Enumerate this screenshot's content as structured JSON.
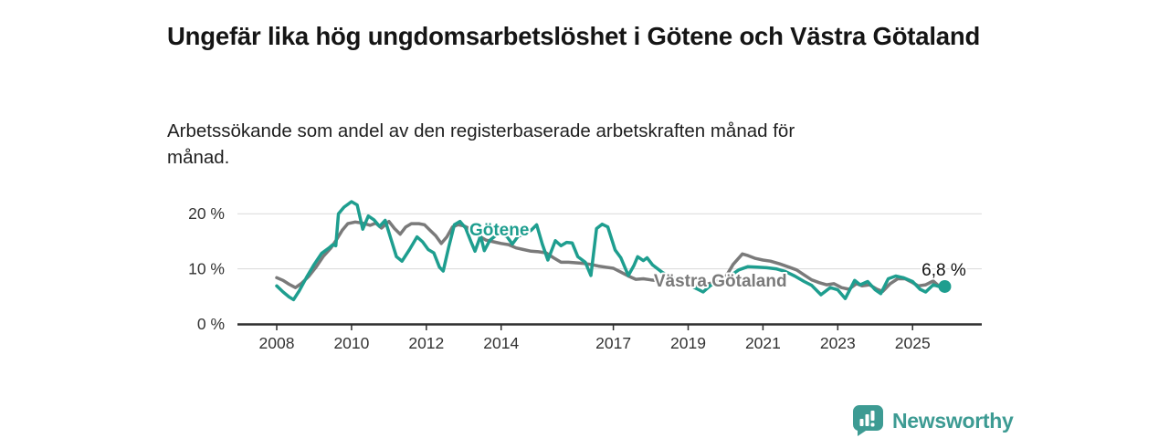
{
  "page": {
    "title": "Ungefär lika hög ungdomsarbetslöshet i Götene och Västra Götaland",
    "subtitle": "Arbetssökande som andel av den registerbaserade arbetskraften månad för månad."
  },
  "branding": {
    "name": "Newsworthy",
    "icon": "newsworthy-speech-bubble-barchart-icon",
    "color": "#3D9B93"
  },
  "colors": {
    "gotene_line": "#1E9E8F",
    "vastra_line": "#7a7a7a",
    "axis": "#2e2e2e",
    "grid": "#d9d9d9",
    "tick_text": "#333333",
    "annotation_text": "#111111",
    "background": "#ffffff"
  },
  "chart_data": {
    "type": "line",
    "title": "Ungefär lika hög ungdomsarbetslöshet i Götene och Västra Götaland",
    "subtitle": "Arbetssökande som andel av den registerbaserade arbetskraften månad för månad.",
    "xlabel": "",
    "ylabel": "",
    "unit": "%",
    "xlim": [
      2006.95,
      2026.85
    ],
    "ylim": [
      0,
      26.5
    ],
    "grid": "horizontal",
    "legend_position": "inline-labels",
    "x_ticks": [
      2008,
      2010,
      2012,
      2014,
      2017,
      2019,
      2021,
      2023,
      2025
    ],
    "y_ticks": [
      0,
      10,
      20
    ],
    "y_tick_labels": [
      "0 %",
      "10 %",
      "20 %"
    ],
    "annotation": {
      "series": "Götene",
      "text": "6,8 %",
      "value": 6.8
    },
    "series": [
      {
        "name": "Västra Götaland",
        "color": "#7a7a7a",
        "label": {
          "text": "Västra Götaland",
          "x": 2019.86,
          "y": 6.8
        },
        "points": [
          [
            2008.0,
            8.4
          ],
          [
            2008.17,
            7.9
          ],
          [
            2008.33,
            7.2
          ],
          [
            2008.5,
            6.6
          ],
          [
            2008.67,
            7.4
          ],
          [
            2008.85,
            8.6
          ],
          [
            2009.05,
            10.3
          ],
          [
            2009.25,
            12.3
          ],
          [
            2009.45,
            13.8
          ],
          [
            2009.6,
            15.3
          ],
          [
            2009.75,
            17.0
          ],
          [
            2009.9,
            18.2
          ],
          [
            2010.1,
            18.5
          ],
          [
            2010.3,
            18.3
          ],
          [
            2010.5,
            17.9
          ],
          [
            2010.65,
            18.3
          ],
          [
            2010.8,
            17.4
          ],
          [
            2011.0,
            18.6
          ],
          [
            2011.15,
            17.3
          ],
          [
            2011.3,
            16.3
          ],
          [
            2011.45,
            17.6
          ],
          [
            2011.6,
            18.2
          ],
          [
            2011.8,
            18.2
          ],
          [
            2011.95,
            18.0
          ],
          [
            2012.1,
            17.0
          ],
          [
            2012.25,
            16.0
          ],
          [
            2012.4,
            14.6
          ],
          [
            2012.55,
            15.8
          ],
          [
            2012.7,
            17.6
          ],
          [
            2012.85,
            18.0
          ],
          [
            2013.0,
            17.8
          ],
          [
            2013.15,
            17.3
          ],
          [
            2013.3,
            16.4
          ],
          [
            2013.45,
            15.8
          ],
          [
            2013.6,
            15.2
          ],
          [
            2013.8,
            14.9
          ],
          [
            2014.0,
            14.6
          ],
          [
            2014.2,
            14.4
          ],
          [
            2014.4,
            13.8
          ],
          [
            2014.6,
            13.5
          ],
          [
            2014.8,
            13.2
          ],
          [
            2015.0,
            13.1
          ],
          [
            2015.2,
            12.9
          ],
          [
            2015.4,
            12.0
          ],
          [
            2015.6,
            11.2
          ],
          [
            2015.8,
            11.2
          ],
          [
            2016.0,
            11.1
          ],
          [
            2016.2,
            11.0
          ],
          [
            2016.4,
            10.8
          ],
          [
            2016.6,
            10.5
          ],
          [
            2016.8,
            10.3
          ],
          [
            2017.0,
            10.1
          ],
          [
            2017.2,
            9.4
          ],
          [
            2017.4,
            8.7
          ],
          [
            2017.6,
            8.1
          ],
          [
            2017.8,
            8.2
          ],
          [
            2018.0,
            8.0
          ],
          [
            2018.25,
            7.8
          ],
          [
            2018.5,
            7.6
          ],
          [
            2018.75,
            7.4
          ],
          [
            2019.0,
            7.2
          ],
          [
            2019.25,
            7.0
          ],
          [
            2019.5,
            7.2
          ],
          [
            2019.75,
            7.7
          ],
          [
            2020.0,
            8.5
          ],
          [
            2020.2,
            10.8
          ],
          [
            2020.45,
            12.7
          ],
          [
            2020.6,
            12.4
          ],
          [
            2020.8,
            11.9
          ],
          [
            2021.0,
            11.6
          ],
          [
            2021.2,
            11.4
          ],
          [
            2021.45,
            10.9
          ],
          [
            2021.7,
            10.3
          ],
          [
            2021.9,
            9.8
          ],
          [
            2022.1,
            8.9
          ],
          [
            2022.3,
            8.0
          ],
          [
            2022.5,
            7.5
          ],
          [
            2022.7,
            7.1
          ],
          [
            2022.9,
            7.3
          ],
          [
            2023.1,
            6.6
          ],
          [
            2023.3,
            6.3
          ],
          [
            2023.5,
            7.3
          ],
          [
            2023.65,
            6.9
          ],
          [
            2023.85,
            7.1
          ],
          [
            2024.05,
            6.3
          ],
          [
            2024.2,
            5.9
          ],
          [
            2024.4,
            7.3
          ],
          [
            2024.6,
            8.2
          ],
          [
            2024.8,
            8.2
          ],
          [
            2025.0,
            7.5
          ],
          [
            2025.15,
            6.9
          ],
          [
            2025.35,
            7.1
          ],
          [
            2025.55,
            7.8
          ],
          [
            2025.7,
            6.9
          ],
          [
            2025.86,
            6.3
          ]
        ]
      },
      {
        "name": "Götene",
        "color": "#1E9E8F",
        "label": {
          "text": "Götene",
          "x": 2013.95,
          "y": 16.1
        },
        "points": [
          [
            2008.0,
            6.9
          ],
          [
            2008.17,
            5.8
          ],
          [
            2008.33,
            4.9
          ],
          [
            2008.45,
            4.4
          ],
          [
            2008.6,
            6.0
          ],
          [
            2008.8,
            8.5
          ],
          [
            2009.0,
            10.8
          ],
          [
            2009.2,
            12.8
          ],
          [
            2009.4,
            13.8
          ],
          [
            2009.5,
            14.4
          ],
          [
            2009.58,
            14.2
          ],
          [
            2009.65,
            20.0
          ],
          [
            2009.8,
            21.2
          ],
          [
            2010.0,
            22.2
          ],
          [
            2010.15,
            21.6
          ],
          [
            2010.3,
            17.2
          ],
          [
            2010.45,
            19.6
          ],
          [
            2010.6,
            18.9
          ],
          [
            2010.75,
            17.7
          ],
          [
            2010.9,
            18.8
          ],
          [
            2011.05,
            15.5
          ],
          [
            2011.2,
            12.2
          ],
          [
            2011.35,
            11.4
          ],
          [
            2011.55,
            13.5
          ],
          [
            2011.75,
            15.8
          ],
          [
            2011.9,
            14.9
          ],
          [
            2012.05,
            13.5
          ],
          [
            2012.2,
            12.9
          ],
          [
            2012.35,
            10.3
          ],
          [
            2012.45,
            9.6
          ],
          [
            2012.6,
            14.0
          ],
          [
            2012.75,
            18.0
          ],
          [
            2012.9,
            18.6
          ],
          [
            2013.05,
            17.4
          ],
          [
            2013.2,
            14.8
          ],
          [
            2013.3,
            13.2
          ],
          [
            2013.45,
            16.0
          ],
          [
            2013.55,
            13.3
          ],
          [
            2013.7,
            15.2
          ],
          [
            2013.85,
            16.0
          ],
          [
            2014.0,
            16.2
          ],
          [
            2014.15,
            15.9
          ],
          [
            2014.3,
            14.5
          ],
          [
            2014.45,
            15.9
          ],
          [
            2014.6,
            16.3
          ],
          [
            2014.8,
            17.0
          ],
          [
            2014.95,
            18.0
          ],
          [
            2015.1,
            14.5
          ],
          [
            2015.25,
            11.6
          ],
          [
            2015.45,
            15.1
          ],
          [
            2015.6,
            14.2
          ],
          [
            2015.75,
            14.8
          ],
          [
            2015.9,
            14.7
          ],
          [
            2016.05,
            12.2
          ],
          [
            2016.25,
            11.2
          ],
          [
            2016.4,
            8.8
          ],
          [
            2016.55,
            17.3
          ],
          [
            2016.7,
            18.1
          ],
          [
            2016.85,
            17.6
          ],
          [
            2017.05,
            13.4
          ],
          [
            2017.2,
            12.0
          ],
          [
            2017.4,
            8.8
          ],
          [
            2017.55,
            10.6
          ],
          [
            2017.65,
            12.2
          ],
          [
            2017.8,
            11.5
          ],
          [
            2017.9,
            12.0
          ],
          [
            2018.05,
            10.7
          ],
          [
            2018.3,
            9.4
          ],
          [
            2018.55,
            8.4
          ],
          [
            2018.8,
            7.8
          ],
          [
            2019.0,
            7.2
          ],
          [
            2019.2,
            6.5
          ],
          [
            2019.4,
            5.8
          ],
          [
            2019.6,
            7.0
          ],
          [
            2019.85,
            7.6
          ],
          [
            2020.1,
            8.6
          ],
          [
            2020.35,
            9.8
          ],
          [
            2020.6,
            10.4
          ],
          [
            2020.85,
            10.3
          ],
          [
            2021.1,
            10.2
          ],
          [
            2021.35,
            10.0
          ],
          [
            2021.6,
            9.5
          ],
          [
            2021.85,
            8.7
          ],
          [
            2022.1,
            7.7
          ],
          [
            2022.3,
            7.0
          ],
          [
            2022.55,
            5.3
          ],
          [
            2022.8,
            6.6
          ],
          [
            2023.0,
            6.2
          ],
          [
            2023.2,
            4.6
          ],
          [
            2023.45,
            7.9
          ],
          [
            2023.6,
            7.1
          ],
          [
            2023.8,
            7.7
          ],
          [
            2024.0,
            6.2
          ],
          [
            2024.15,
            5.5
          ],
          [
            2024.35,
            8.2
          ],
          [
            2024.55,
            8.7
          ],
          [
            2024.75,
            8.4
          ],
          [
            2025.0,
            7.7
          ],
          [
            2025.2,
            6.3
          ],
          [
            2025.35,
            5.8
          ],
          [
            2025.55,
            7.1
          ],
          [
            2025.7,
            6.8
          ],
          [
            2025.86,
            6.8
          ]
        ]
      }
    ]
  }
}
